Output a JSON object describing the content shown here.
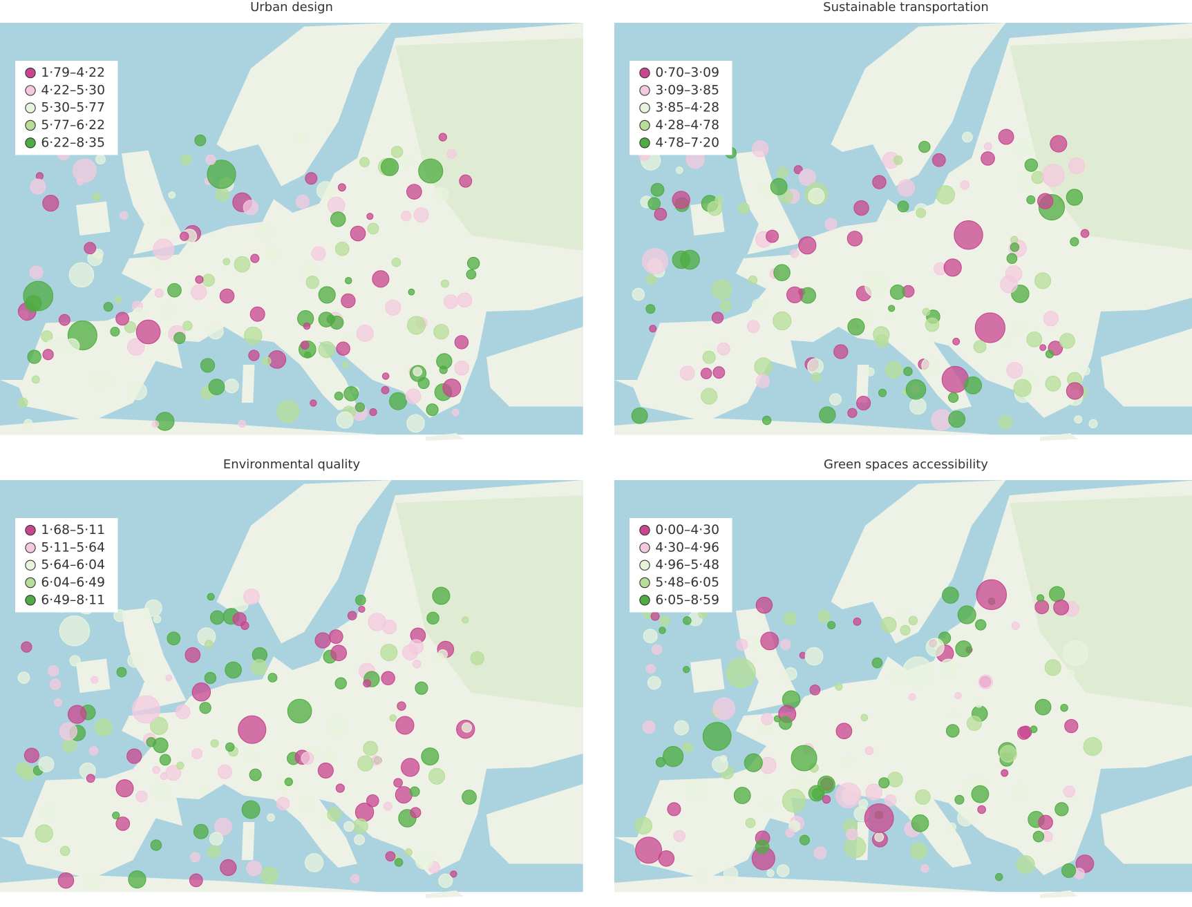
{
  "panels": [
    {
      "title": "Urban design",
      "legend": [
        "1·79–4·22",
        "4·22–5·30",
        "5·30–5·77",
        "5·77–6·22",
        "6·22–8·35"
      ]
    },
    {
      "title": "Sustainable transportation",
      "legend": [
        "0·70–3·09",
        "3·09–3·85",
        "3·85–4·28",
        "4·28–4·78",
        "4·78–7·20"
      ]
    },
    {
      "title": "Environmental quality",
      "legend": [
        "1·68–5·11",
        "5·11–5·64",
        "5·64–6·04",
        "6·04–6·49",
        "6·49–8·11"
      ]
    },
    {
      "title": "Green spaces accessibility",
      "legend": [
        "0·00–4·30",
        "4·30–4·96",
        "4·96–5·48",
        "5·48–6·05",
        "6·05–8·59"
      ]
    }
  ],
  "legend_colors": [
    "#c8458f",
    "#f4c9df",
    "#e8f3dc",
    "#b7dd98",
    "#4fac42"
  ]
}
